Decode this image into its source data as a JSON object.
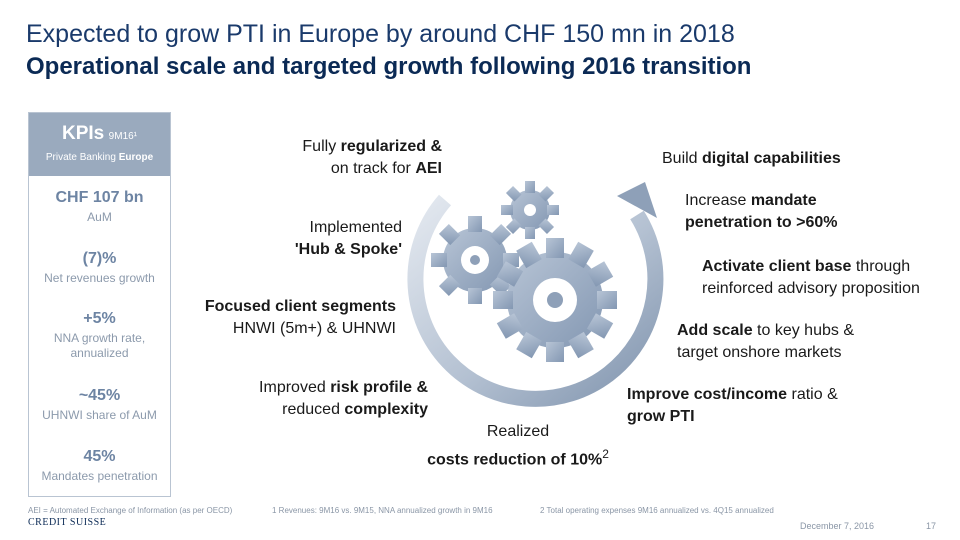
{
  "header": {
    "title_line1": "Expected to grow PTI in Europe by around CHF 150 mn in 2018",
    "title_line2": "Operational scale and targeted growth following 2016 transition"
  },
  "kpi_panel": {
    "title": "KPIs",
    "period": "9M16¹",
    "subtitle_prefix": "Private Banking ",
    "subtitle_bold": "Europe",
    "items": [
      {
        "value": "CHF 107 bn",
        "label": "AuM"
      },
      {
        "value": "(7)%",
        "label": "Net revenues growth"
      },
      {
        "value": "+5%",
        "label_line1": "NNA growth rate,",
        "label_line2": "annualized"
      },
      {
        "value": "~45%",
        "label": "UHNWI share of AuM"
      },
      {
        "value": "45%",
        "label": "Mandates penetration"
      }
    ]
  },
  "left_achievements": {
    "regularized": {
      "line1_plain": "Fully ",
      "line1_bold": "regularized &",
      "line2_plain": "on track for ",
      "line2_bold": "AEI"
    },
    "hub_spoke": {
      "line1": "Implemented",
      "line2_bold": "'Hub & Spoke'"
    },
    "client_segments": {
      "line1_bold": "Focused client segments",
      "line2": "HNWI (5m+) & UHNWI"
    },
    "risk_profile": {
      "line1_plain": "Improved ",
      "line1_bold": "risk profile &",
      "line2_plain": "reduced ",
      "line2_bold": "complexity"
    },
    "costs": {
      "line1": "Realized",
      "line2_bold": "costs reduction of 10%",
      "sup": "2"
    }
  },
  "right_goals": {
    "digital": {
      "plain": "Build ",
      "bold": "digital capabilities"
    },
    "mandate": {
      "line1_plain": "Increase ",
      "line1_bold": "mandate",
      "line2_bold": "penetration to >60%"
    },
    "client_base": {
      "line1_bold": "Activate client base",
      "line1_plain": " through",
      "line2": "reinforced advisory proposition"
    },
    "scale": {
      "line1_bold": "Add scale",
      "line1_plain": " to key hubs &",
      "line2": "target onshore markets"
    },
    "cost_income": {
      "line1_bold": "Improve cost/income",
      "line1_plain": " ratio &",
      "line2_bold": "grow PTI"
    }
  },
  "footer": {
    "aei_note": "AEI = Automated Exchange of Information (as per OECD)",
    "note1": "1 Revenues: 9M16 vs. 9M15, NNA annualized growth in 9M16",
    "note2": "2 Total operating expenses 9M16 annualized vs. 4Q15 annualized",
    "logo": "CREDIT SUISSE",
    "date": "December 7, 2016",
    "page": "17"
  },
  "colors": {
    "title_blue": "#1a3a6b",
    "subtitle_navy": "#0b2a55",
    "kpi_header_bg": "#9aaabe",
    "kpi_value": "#6d84a3",
    "gear_gray": "#9aaabe"
  }
}
